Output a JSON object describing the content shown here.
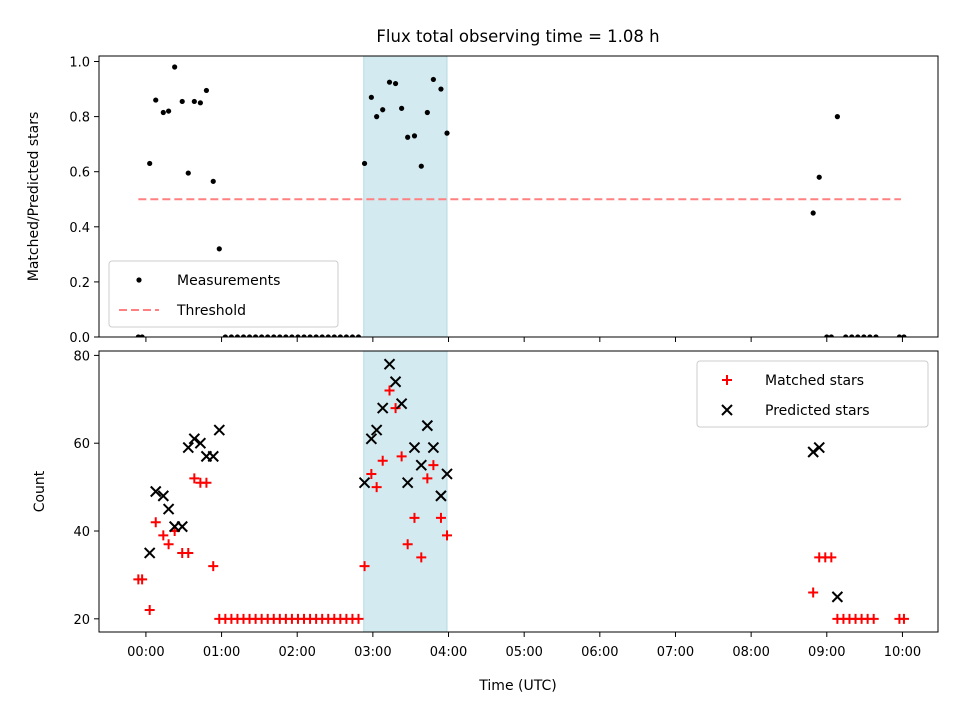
{
  "chart_data": {
    "title": "Flux total observing time = 1.08 h",
    "xlabel": "Time (UTC)",
    "x_tick_labels": [
      "00:00",
      "01:00",
      "02:00",
      "03:00",
      "04:00",
      "05:00",
      "06:00",
      "07:00",
      "08:00",
      "09:00",
      "10:00"
    ],
    "x_tick_hours": [
      0,
      1,
      2,
      3,
      4,
      5,
      6,
      7,
      8,
      9,
      10
    ],
    "xlim_hours": [
      -0.62,
      10.47
    ],
    "highlight_span_hours": [
      2.88,
      3.98
    ],
    "highlight_color": "#d3eaf0",
    "panels": [
      {
        "type": "scatter",
        "ylabel": "Matched/Predicted stars",
        "ylim": [
          0,
          1.02
        ],
        "y_ticks": [
          0.0,
          0.2,
          0.4,
          0.6,
          0.8,
          1.0
        ],
        "y_tick_labels": [
          "0.0",
          "0.2",
          "0.4",
          "0.6",
          "0.8",
          "1.0"
        ],
        "legend_position": "lower-left",
        "series": [
          {
            "name": "Measurements",
            "marker": "dot",
            "color": "#000000",
            "points": [
              [
                -0.1,
                0.0
              ],
              [
                -0.05,
                0.0
              ],
              [
                0.05,
                0.63
              ],
              [
                0.13,
                0.86
              ],
              [
                0.23,
                0.815
              ],
              [
                0.3,
                0.82
              ],
              [
                0.38,
                0.98
              ],
              [
                0.48,
                0.855
              ],
              [
                0.56,
                0.595
              ],
              [
                0.64,
                0.855
              ],
              [
                0.72,
                0.85
              ],
              [
                0.8,
                0.895
              ],
              [
                0.89,
                0.565
              ],
              [
                0.97,
                0.32
              ],
              [
                1.05,
                0.0
              ],
              [
                1.13,
                0.0
              ],
              [
                1.21,
                0.0
              ],
              [
                1.29,
                0.0
              ],
              [
                1.37,
                0.0
              ],
              [
                1.45,
                0.0
              ],
              [
                1.53,
                0.0
              ],
              [
                1.61,
                0.0
              ],
              [
                1.69,
                0.0
              ],
              [
                1.77,
                0.0
              ],
              [
                1.85,
                0.0
              ],
              [
                1.93,
                0.0
              ],
              [
                2.01,
                0.0
              ],
              [
                2.09,
                0.0
              ],
              [
                2.17,
                0.0
              ],
              [
                2.25,
                0.0
              ],
              [
                2.33,
                0.0
              ],
              [
                2.41,
                0.0
              ],
              [
                2.49,
                0.0
              ],
              [
                2.57,
                0.0
              ],
              [
                2.65,
                0.0
              ],
              [
                2.73,
                0.0
              ],
              [
                2.81,
                0.0
              ],
              [
                2.89,
                0.63
              ],
              [
                2.98,
                0.87
              ],
              [
                3.05,
                0.8
              ],
              [
                3.13,
                0.825
              ],
              [
                3.22,
                0.925
              ],
              [
                3.3,
                0.92
              ],
              [
                3.38,
                0.83
              ],
              [
                3.46,
                0.725
              ],
              [
                3.55,
                0.73
              ],
              [
                3.64,
                0.62
              ],
              [
                3.72,
                0.815
              ],
              [
                3.8,
                0.935
              ],
              [
                3.9,
                0.9
              ],
              [
                3.98,
                0.74
              ],
              [
                8.82,
                0.45
              ],
              [
                8.9,
                0.58
              ],
              [
                9.0,
                0.0
              ],
              [
                9.06,
                0.0
              ],
              [
                9.14,
                0.8
              ],
              [
                9.25,
                0.0
              ],
              [
                9.33,
                0.0
              ],
              [
                9.41,
                0.0
              ],
              [
                9.49,
                0.0
              ],
              [
                9.57,
                0.0
              ],
              [
                9.65,
                0.0
              ],
              [
                9.96,
                0.0
              ],
              [
                10.02,
                0.0
              ]
            ]
          },
          {
            "name": "Threshold",
            "marker": "dashed-line",
            "color": "#ff8080",
            "points": [
              [
                -0.1,
                0.5
              ],
              [
                9.98,
                0.5
              ]
            ]
          }
        ]
      },
      {
        "type": "scatter",
        "ylabel": "Count",
        "ylim": [
          17,
          81
        ],
        "y_ticks": [
          20,
          40,
          60,
          80
        ],
        "y_tick_labels": [
          "20",
          "40",
          "60",
          "80"
        ],
        "legend_position": "upper-right",
        "series": [
          {
            "name": "Matched stars",
            "marker": "plus",
            "color": "#ff0000",
            "points": [
              [
                -0.1,
                29
              ],
              [
                -0.05,
                29
              ],
              [
                0.05,
                22
              ],
              [
                0.13,
                42
              ],
              [
                0.23,
                39
              ],
              [
                0.3,
                37
              ],
              [
                0.38,
                40
              ],
              [
                0.48,
                35
              ],
              [
                0.56,
                35
              ],
              [
                0.64,
                52
              ],
              [
                0.72,
                51
              ],
              [
                0.8,
                51
              ],
              [
                0.89,
                32
              ],
              [
                0.97,
                20
              ],
              [
                1.05,
                20
              ],
              [
                1.13,
                20
              ],
              [
                1.21,
                20
              ],
              [
                1.29,
                20
              ],
              [
                1.37,
                20
              ],
              [
                1.45,
                20
              ],
              [
                1.53,
                20
              ],
              [
                1.61,
                20
              ],
              [
                1.69,
                20
              ],
              [
                1.77,
                20
              ],
              [
                1.85,
                20
              ],
              [
                1.93,
                20
              ],
              [
                2.01,
                20
              ],
              [
                2.09,
                20
              ],
              [
                2.17,
                20
              ],
              [
                2.25,
                20
              ],
              [
                2.33,
                20
              ],
              [
                2.41,
                20
              ],
              [
                2.49,
                20
              ],
              [
                2.57,
                20
              ],
              [
                2.65,
                20
              ],
              [
                2.73,
                20
              ],
              [
                2.81,
                20
              ],
              [
                2.89,
                32
              ],
              [
                2.98,
                53
              ],
              [
                3.05,
                50
              ],
              [
                3.13,
                56
              ],
              [
                3.22,
                72
              ],
              [
                3.3,
                68
              ],
              [
                3.38,
                57
              ],
              [
                3.46,
                37
              ],
              [
                3.55,
                43
              ],
              [
                3.64,
                34
              ],
              [
                3.72,
                52
              ],
              [
                3.8,
                55
              ],
              [
                3.9,
                43
              ],
              [
                3.98,
                39
              ],
              [
                8.82,
                26
              ],
              [
                8.9,
                34
              ],
              [
                8.98,
                34
              ],
              [
                9.06,
                34
              ],
              [
                9.14,
                20
              ],
              [
                9.22,
                20
              ],
              [
                9.3,
                20
              ],
              [
                9.38,
                20
              ],
              [
                9.46,
                20
              ],
              [
                9.54,
                20
              ],
              [
                9.62,
                20
              ],
              [
                9.96,
                20
              ],
              [
                10.02,
                20
              ]
            ]
          },
          {
            "name": "Predicted stars",
            "marker": "x",
            "color": "#000000",
            "points": [
              [
                0.05,
                35
              ],
              [
                0.13,
                49
              ],
              [
                0.23,
                48
              ],
              [
                0.3,
                45
              ],
              [
                0.38,
                41
              ],
              [
                0.48,
                41
              ],
              [
                0.56,
                59
              ],
              [
                0.64,
                61
              ],
              [
                0.72,
                60
              ],
              [
                0.8,
                57
              ],
              [
                0.89,
                57
              ],
              [
                0.97,
                63
              ],
              [
                2.89,
                51
              ],
              [
                2.98,
                61
              ],
              [
                3.05,
                63
              ],
              [
                3.13,
                68
              ],
              [
                3.22,
                78
              ],
              [
                3.3,
                74
              ],
              [
                3.38,
                69
              ],
              [
                3.46,
                51
              ],
              [
                3.55,
                59
              ],
              [
                3.64,
                55
              ],
              [
                3.72,
                64
              ],
              [
                3.8,
                59
              ],
              [
                3.9,
                48
              ],
              [
                3.98,
                53
              ],
              [
                8.82,
                58
              ],
              [
                8.9,
                59
              ],
              [
                9.14,
                25
              ]
            ]
          }
        ]
      }
    ]
  }
}
